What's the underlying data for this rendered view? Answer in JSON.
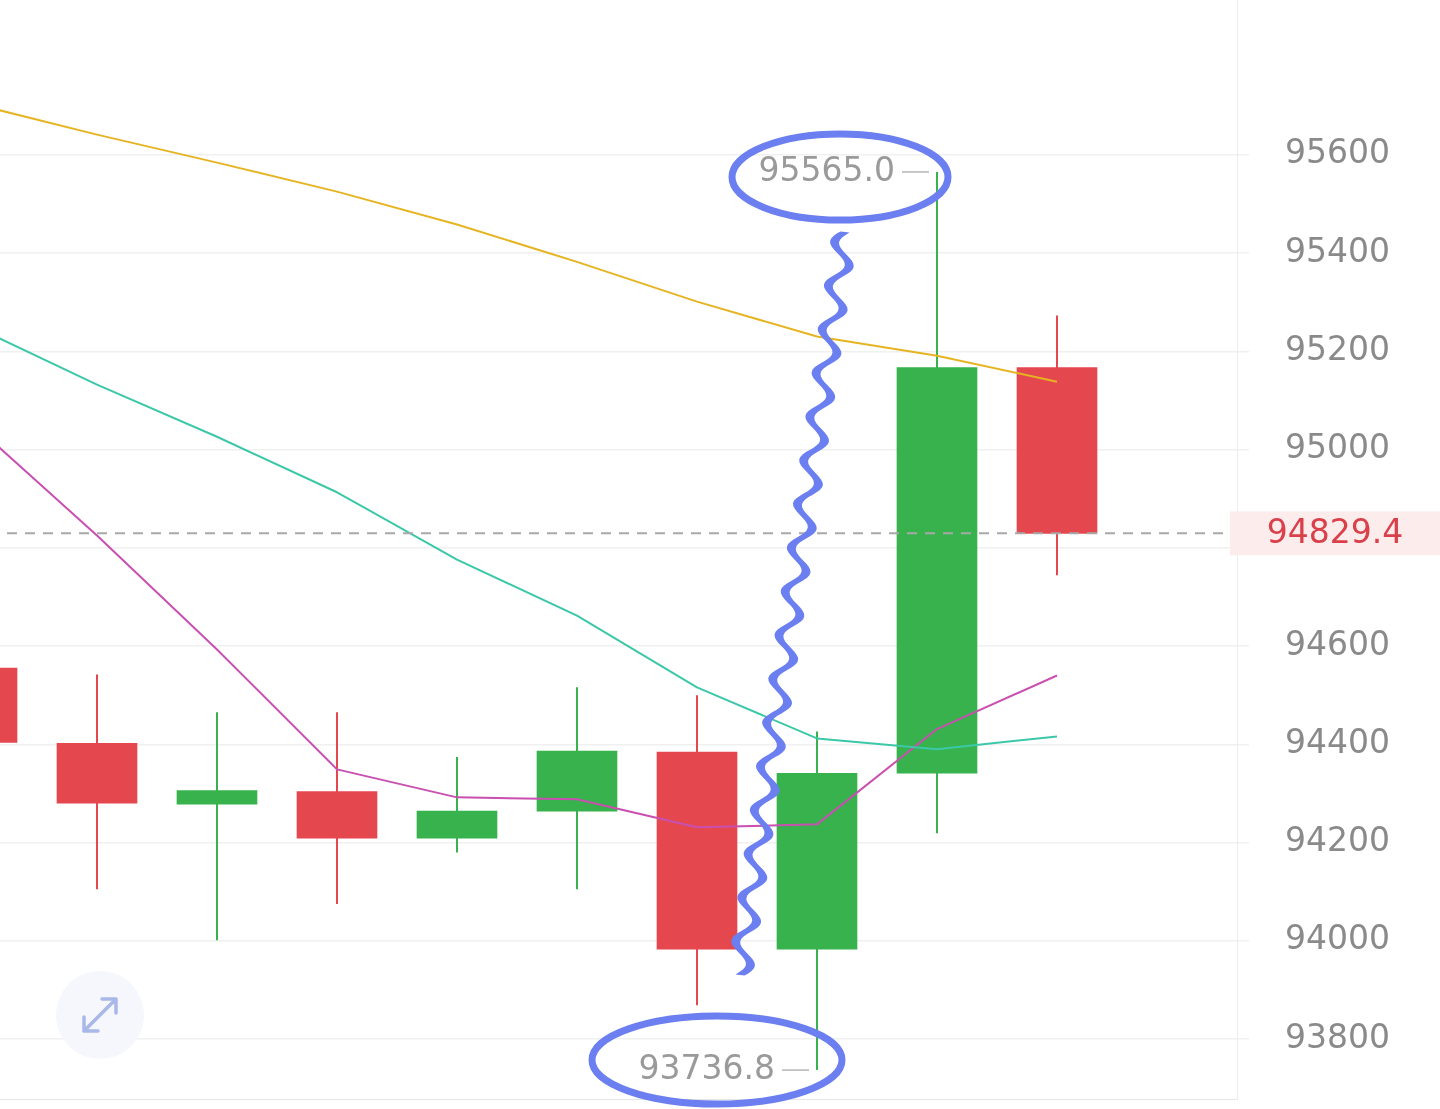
{
  "chart_data": {
    "type": "candlestick",
    "categories": [
      null,
      null,
      null,
      null,
      null,
      null,
      null,
      null,
      null,
      null
    ],
    "ohlc": [
      [
        94555,
        94555,
        94404,
        94404
      ],
      [
        94402,
        94542,
        94105,
        94280
      ],
      [
        94278,
        94465,
        94001,
        94306
      ],
      [
        94304,
        94465,
        94075,
        94209
      ],
      [
        94209,
        94374,
        94180,
        94264
      ],
      [
        94264,
        94516,
        94105,
        94386
      ],
      [
        94384,
        94500,
        93869,
        93983
      ],
      [
        93983,
        94426,
        93736.8,
        94341
      ],
      [
        94341,
        95565.0,
        94219,
        95167
      ],
      [
        95167,
        95273,
        94744,
        94829.4
      ]
    ],
    "colors": [
      "#e5474f",
      "#e5474f",
      "#37b24d",
      "#e5474f",
      "#37b24d",
      "#37b24d",
      "#e5474f",
      "#37b24d",
      "#37b24d",
      "#e5474f"
    ],
    "series": [
      {
        "type": "line",
        "color": "#e6b422",
        "values": [
          95702,
          95641,
          95584,
          95525,
          95458,
          95382,
          95301,
          95230,
          95191,
          95138
        ]
      },
      {
        "type": "line",
        "color": "#3cc8a8",
        "values": [
          95248,
          95132,
          95026,
          94913,
          94776,
          94662,
          94516,
          94412,
          94390,
          94416
        ]
      },
      {
        "type": "line",
        "color": "#c94fb0",
        "values": [
          95045,
          94825,
          94593,
          94349,
          94292,
          94288,
          94231,
          94237,
          94431,
          94540
        ]
      }
    ],
    "ylim": [
      93678,
      95915
    ],
    "yticks": [
      93800,
      94000,
      94200,
      94400,
      94600,
      {
        "value": 94800,
        "label": null
      },
      95000,
      95200,
      95400,
      95600
    ],
    "ref_lines": [
      {
        "axis": "y",
        "value": 94829.4,
        "label": "94829.4",
        "line_style": "dashed"
      }
    ],
    "annotations": [
      "95565.0",
      "93736.8"
    ],
    "grid": "y",
    "tick_labels": "y",
    "marker": "none"
  }
}
